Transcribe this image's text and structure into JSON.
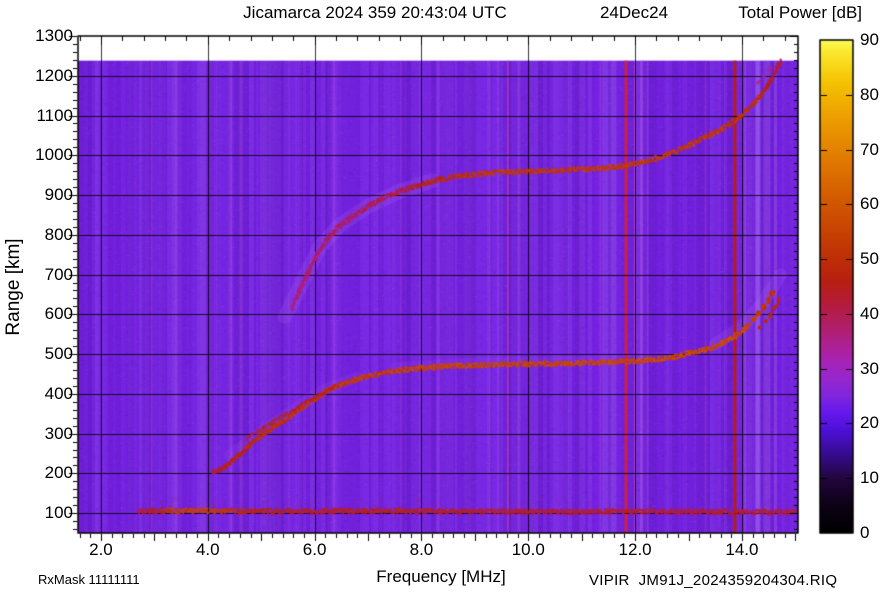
{
  "title": {
    "main": "Jicamarca 2024 359 20:43:04 UTC",
    "date": "24Dec24"
  },
  "colorbar": {
    "title": "Total Power [dB]",
    "min": 0,
    "max": 90,
    "tick_step": 10,
    "tick_labels": [
      "0",
      "10",
      "20",
      "30",
      "40",
      "50",
      "60",
      "70",
      "80",
      "90"
    ]
  },
  "axes": {
    "x": {
      "label": "Frequency [MHz]",
      "tick_values": [
        2,
        4,
        6,
        8,
        10,
        12,
        14
      ],
      "tick_labels": [
        "2.0",
        "4.0",
        "6.0",
        "8.0",
        "10.0",
        "12.0",
        "14.0"
      ],
      "grid_values": [
        2,
        4,
        6,
        8,
        10,
        12,
        14
      ],
      "min": 1.57,
      "max": 15.05
    },
    "y": {
      "label": "Range [km]",
      "tick_values": [
        100,
        200,
        300,
        400,
        500,
        600,
        700,
        800,
        900,
        1000,
        1100,
        1200,
        1300
      ],
      "tick_labels": [
        "100",
        "200",
        "300",
        "400",
        "500",
        "600",
        "700",
        "800",
        "900",
        "1000",
        "1100",
        "1200",
        "1300"
      ],
      "grid_values": [
        100,
        200,
        300,
        400,
        500,
        600,
        700,
        800,
        900,
        1000,
        1100,
        1200
      ],
      "min": 50,
      "max": 1300
    }
  },
  "footer": {
    "rx_mask": "RxMask 11111111",
    "file_id": "VIPIR  JM91J_2024359204304.RIQ"
  },
  "chart_data": {
    "type": "heatmap",
    "description": "VIPIR ionogram: total received power (dB) vs sounding frequency and virtual range",
    "title": "Jicamarca 2024 359 20:43:04 UTC 24Dec24",
    "xlabel": "Frequency [MHz]",
    "ylabel": "Range [km]",
    "zlabel": "Total Power [dB]",
    "xlim": [
      1.57,
      15.05
    ],
    "ylim": [
      50,
      1300
    ],
    "zlim": [
      0,
      90
    ],
    "background_db": 23.8,
    "no_data_above_km": 1238,
    "colormap_stops": [
      [
        0,
        "#000000"
      ],
      [
        5,
        "#0d0216"
      ],
      [
        10,
        "#22063e"
      ],
      [
        15,
        "#3a0c9a"
      ],
      [
        19,
        "#4f10da"
      ],
      [
        22,
        "#6619ec"
      ],
      [
        25,
        "#7f26dd"
      ],
      [
        28,
        "#9626cf"
      ],
      [
        31,
        "#a524ba"
      ],
      [
        34,
        "#ad2196"
      ],
      [
        38,
        "#b11e66"
      ],
      [
        42,
        "#b41c3a"
      ],
      [
        46,
        "#b81f10"
      ],
      [
        51,
        "#c03206"
      ],
      [
        56,
        "#c94603"
      ],
      [
        61,
        "#d35a00"
      ],
      [
        68,
        "#e07900"
      ],
      [
        75,
        "#ec9a00"
      ],
      [
        82,
        "#f5c100"
      ],
      [
        88,
        "#fbe930"
      ],
      [
        90,
        "#fdfd5a"
      ]
    ],
    "traces": [
      {
        "name": "e-layer-echo",
        "width": 5,
        "alpha": 0.85,
        "fuzz": 0.45,
        "points": [
          [
            2.68,
            107,
            41
          ],
          [
            2.9,
            107,
            44
          ],
          [
            3.1,
            108,
            48
          ],
          [
            3.3,
            109,
            52
          ],
          [
            3.5,
            108,
            54
          ],
          [
            3.7,
            109,
            55
          ],
          [
            3.9,
            108,
            55
          ],
          [
            4.1,
            109,
            54
          ],
          [
            4.3,
            108,
            52
          ],
          [
            4.5,
            108,
            49
          ],
          [
            4.8,
            107,
            47
          ],
          [
            5.1,
            107,
            46
          ],
          [
            5.5,
            107,
            46
          ],
          [
            5.9,
            106,
            45
          ],
          [
            6.3,
            107,
            45
          ],
          [
            6.7,
            108,
            46
          ],
          [
            7.1,
            108,
            46
          ],
          [
            7.5,
            108,
            46
          ],
          [
            7.9,
            108,
            45
          ],
          [
            8.3,
            107,
            45
          ],
          [
            8.7,
            107,
            44
          ],
          [
            9.1,
            107,
            44
          ],
          [
            9.5,
            107,
            44
          ],
          [
            10.0,
            106,
            44
          ],
          [
            10.5,
            106,
            43
          ],
          [
            11.0,
            106,
            43
          ],
          [
            11.5,
            107,
            44
          ],
          [
            12.0,
            107,
            44
          ],
          [
            12.5,
            106,
            43
          ],
          [
            13.0,
            106,
            43
          ],
          [
            13.5,
            106,
            44
          ],
          [
            14.0,
            106,
            43
          ],
          [
            14.5,
            105,
            43
          ],
          [
            15.0,
            105,
            42
          ]
        ]
      },
      {
        "name": "f-trace-o-mode",
        "width": 5,
        "alpha": 0.92,
        "points": [
          [
            4.08,
            205,
            43
          ],
          [
            4.22,
            213,
            45
          ],
          [
            4.38,
            227,
            47
          ],
          [
            4.55,
            248,
            48
          ],
          [
            4.75,
            272,
            49
          ],
          [
            5.0,
            300,
            50
          ],
          [
            5.25,
            322,
            50
          ],
          [
            5.5,
            345,
            51
          ],
          [
            5.75,
            368,
            51
          ],
          [
            6.0,
            392,
            52
          ],
          [
            6.2,
            410,
            52
          ],
          [
            6.45,
            425,
            53
          ],
          [
            6.7,
            437,
            53
          ],
          [
            7.0,
            448,
            54
          ],
          [
            7.3,
            456,
            54
          ],
          [
            7.6,
            462,
            55
          ],
          [
            8.0,
            467,
            55
          ],
          [
            8.5,
            472,
            56
          ],
          [
            9.0,
            475,
            56
          ],
          [
            9.5,
            477,
            56
          ],
          [
            10.0,
            478,
            56
          ],
          [
            10.5,
            479,
            56
          ],
          [
            11.0,
            480,
            56
          ],
          [
            11.5,
            482,
            56
          ],
          [
            11.9,
            484,
            56
          ],
          [
            12.3,
            488,
            56
          ],
          [
            12.7,
            494,
            56
          ],
          [
            13.0,
            505,
            57
          ],
          [
            13.3,
            514,
            57
          ],
          [
            13.6,
            528,
            57
          ],
          [
            13.85,
            548,
            57
          ],
          [
            14.0,
            562,
            56
          ],
          [
            14.12,
            576,
            55
          ]
        ]
      },
      {
        "name": "f-trace-double",
        "width": 3,
        "alpha": 0.75,
        "points": [
          [
            4.7,
            290,
            45
          ],
          [
            5.0,
            316,
            46
          ],
          [
            5.3,
            341,
            46
          ],
          [
            5.6,
            364,
            46
          ],
          [
            5.9,
            388,
            45
          ],
          [
            6.15,
            406,
            44
          ],
          [
            6.4,
            423,
            43
          ]
        ]
      },
      {
        "name": "f-tail-o",
        "width": 4,
        "alpha": 0.9,
        "dotted": true,
        "dot": 3,
        "points": [
          [
            14.18,
            588,
            54
          ],
          [
            14.28,
            604,
            53
          ],
          [
            14.38,
            622,
            52
          ],
          [
            14.47,
            640,
            51
          ],
          [
            14.55,
            656,
            50
          ],
          [
            14.62,
            668,
            49
          ]
        ]
      },
      {
        "name": "f-tail-x",
        "width": 3,
        "alpha": 0.85,
        "dotted": true,
        "dot": 3,
        "points": [
          [
            14.3,
            568,
            50
          ],
          [
            14.42,
            586,
            49
          ],
          [
            14.53,
            608,
            48
          ],
          [
            14.63,
            630,
            47
          ],
          [
            14.7,
            648,
            46
          ]
        ]
      },
      {
        "name": "second-hop-echo",
        "width": 5,
        "alpha": 0.88,
        "points": [
          [
            5.55,
            618,
            36
          ],
          [
            5.7,
            660,
            37
          ],
          [
            5.85,
            705,
            37
          ],
          [
            6.0,
            745,
            38
          ],
          [
            6.15,
            780,
            38
          ],
          [
            6.35,
            812,
            39
          ],
          [
            6.6,
            840,
            39
          ],
          [
            6.9,
            868,
            40
          ],
          [
            7.2,
            890,
            41
          ],
          [
            7.5,
            908,
            42
          ],
          [
            7.8,
            922,
            44
          ],
          [
            8.1,
            934,
            47
          ],
          [
            8.4,
            944,
            49
          ],
          [
            8.8,
            952,
            51
          ],
          [
            9.2,
            957,
            52
          ],
          [
            9.6,
            960,
            52
          ],
          [
            10.0,
            962,
            52
          ],
          [
            10.5,
            964,
            52
          ],
          [
            11.0,
            967,
            53
          ],
          [
            11.4,
            970,
            53
          ],
          [
            11.8,
            976,
            53
          ],
          [
            12.1,
            985,
            53
          ],
          [
            12.4,
            996,
            53
          ],
          [
            12.7,
            1010,
            53
          ],
          [
            13.0,
            1028,
            53
          ],
          [
            13.3,
            1048,
            53
          ],
          [
            13.6,
            1068,
            53
          ],
          [
            13.85,
            1090,
            52
          ],
          [
            14.05,
            1112,
            51
          ],
          [
            14.2,
            1132,
            50
          ],
          [
            14.35,
            1155,
            48
          ],
          [
            14.45,
            1175,
            46
          ],
          [
            14.55,
            1198,
            44
          ],
          [
            14.65,
            1225,
            42
          ],
          [
            14.72,
            1238,
            40
          ]
        ]
      },
      {
        "name": "second-hop-ext",
        "width": 3,
        "alpha": 0.55,
        "dotted": true,
        "dot": 3,
        "points": [
          [
            14.28,
            1185,
            36
          ],
          [
            14.42,
            1208,
            35
          ],
          [
            14.54,
            1230,
            34
          ]
        ]
      }
    ],
    "halos": [
      {
        "name": "second-hop-lead-halo",
        "width": 15,
        "color": "#c07bf2",
        "alpha": 0.16,
        "points": [
          [
            5.45,
            595
          ],
          [
            5.8,
            690
          ],
          [
            6.1,
            770
          ],
          [
            6.5,
            828
          ],
          [
            7.0,
            872
          ],
          [
            7.6,
            910
          ],
          [
            8.2,
            936
          ]
        ]
      },
      {
        "name": "f-rise-halo",
        "width": 11,
        "color": "#b665ec",
        "alpha": 0.14,
        "points": [
          [
            4.4,
            245
          ],
          [
            5.0,
            305
          ],
          [
            5.6,
            360
          ],
          [
            6.2,
            412
          ],
          [
            6.8,
            442
          ]
        ]
      },
      {
        "name": "f-plateau-halo",
        "width": 9,
        "color": "#b665ec",
        "alpha": 0.12,
        "points": [
          [
            7.5,
            468
          ],
          [
            9.0,
            480
          ],
          [
            11.0,
            484
          ],
          [
            12.6,
            494
          ]
        ]
      },
      {
        "name": "f-tail-halo",
        "width": 13,
        "color": "#c07bf2",
        "alpha": 0.15,
        "points": [
          [
            13.5,
            525
          ],
          [
            14.0,
            568
          ],
          [
            14.35,
            622
          ],
          [
            14.6,
            672
          ],
          [
            14.72,
            700
          ]
        ]
      }
    ],
    "rfi_stripes": [
      {
        "f": 2.95,
        "w": 2,
        "color": "#cf6be2",
        "alpha": 0.22
      },
      {
        "f": 3.4,
        "w": 2,
        "color": "#cf6be2",
        "alpha": 0.16
      },
      {
        "f": 4.44,
        "w": 2,
        "color": "#d670e8",
        "alpha": 0.26
      },
      {
        "f": 4.62,
        "w": 3,
        "color": "#d670e8",
        "alpha": 0.18
      },
      {
        "f": 6.36,
        "w": 3,
        "color": "#cf6be2",
        "alpha": 0.15
      },
      {
        "f": 7.62,
        "w": 2,
        "color": "#cf6be2",
        "alpha": 0.16
      },
      {
        "f": 8.32,
        "w": 3,
        "color": "#cf6be2",
        "alpha": 0.13
      },
      {
        "f": 9.62,
        "w": 2,
        "color": "#dd58a8",
        "alpha": 0.4
      },
      {
        "f": 9.82,
        "w": 2,
        "color": "#cf6be2",
        "alpha": 0.22
      },
      {
        "f": 11.35,
        "w": 2,
        "color": "#cf6be2",
        "alpha": 0.2
      },
      {
        "f": 11.83,
        "w": 3,
        "color": "#d42135",
        "alpha": 0.92
      },
      {
        "f": 12.0,
        "w": 2,
        "color": "#cf4fc0",
        "alpha": 0.45
      },
      {
        "f": 12.12,
        "w": 3,
        "color": "#bb6ae6",
        "alpha": 0.35
      },
      {
        "f": 12.24,
        "w": 2,
        "color": "#bb6ae6",
        "alpha": 0.25
      },
      {
        "f": 13.32,
        "w": 2,
        "color": "#cf6be2",
        "alpha": 0.2
      },
      {
        "f": 13.87,
        "w": 3,
        "color": "#bb1a0a",
        "alpha": 0.95
      },
      {
        "f": 14.06,
        "w": 2,
        "color": "#cf6be2",
        "alpha": 0.25
      },
      {
        "f": 14.3,
        "w": 5,
        "color": "#b787f4",
        "alpha": 0.4
      },
      {
        "f": 14.47,
        "w": 7,
        "color": "#ab79f0",
        "alpha": 0.28
      },
      {
        "f": 14.63,
        "w": 3,
        "color": "#b787f4",
        "alpha": 0.26
      }
    ]
  }
}
